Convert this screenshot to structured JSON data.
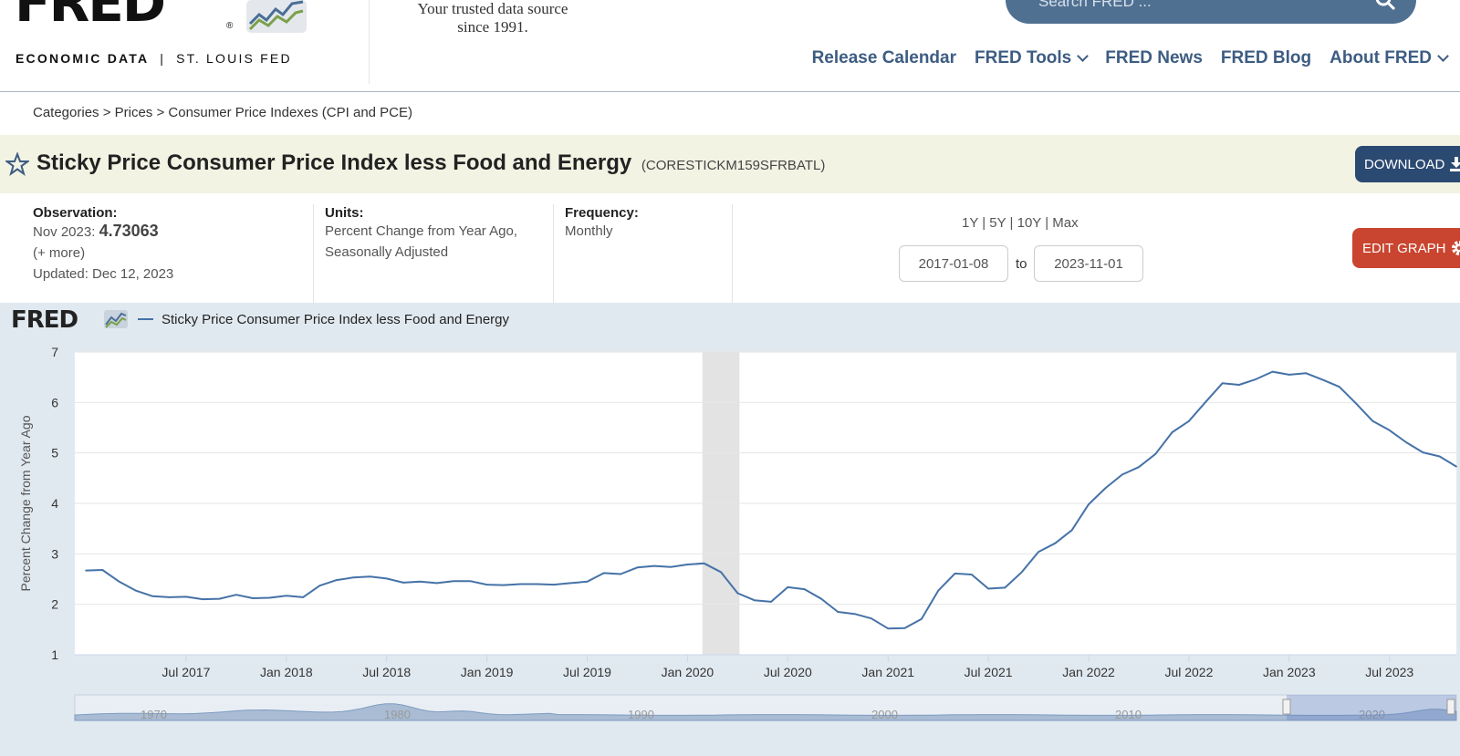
{
  "header": {
    "logo_text": "FRED",
    "logo_reg": "®",
    "logo_sub_bold": "ECONOMIC DATA",
    "logo_sub_sep": "|",
    "logo_sub_rest": "ST. LOUIS FED",
    "tagline_line1": "Your trusted data source",
    "tagline_line2": "since 1991.",
    "search_placeholder": "Search FRED ..."
  },
  "nav": [
    {
      "label": "Release Calendar",
      "has_menu": false
    },
    {
      "label": "FRED Tools",
      "has_menu": true
    },
    {
      "label": "FRED News",
      "has_menu": false
    },
    {
      "label": "FRED Blog",
      "has_menu": false
    },
    {
      "label": "About FRED",
      "has_menu": true
    }
  ],
  "breadcrumb": "Categories > Prices > Consumer Price Indexes (CPI and PCE)",
  "series": {
    "title": "Sticky Price Consumer Price Index less Food and Energy",
    "id": "(CORESTICKM159SFRBATL)"
  },
  "buttons": {
    "download": "DOWNLOAD",
    "edit_graph": "EDIT GRAPH"
  },
  "observation": {
    "label": "Observation:",
    "date": "Nov 2023:",
    "value": "4.73063",
    "more": "(+ more)",
    "updated": "Updated: Dec 12, 2023"
  },
  "units": {
    "label": "Units:",
    "line1": "Percent Change from Year Ago,",
    "line2": "Seasonally Adjusted"
  },
  "frequency": {
    "label": "Frequency:",
    "value": "Monthly"
  },
  "range": {
    "links": "1Y | 5Y | 10Y | Max",
    "start": "2017-01-08",
    "to": "to",
    "end": "2023-11-01"
  },
  "colors": {
    "series_line": "#4572a7",
    "recession_shade": "#e3e3e3",
    "nav_text": "#3d5c82",
    "download_bg": "#2b4a72",
    "edit_bg": "#c9452f",
    "titlebar_bg": "#f2f3e3",
    "graph_bg": "#e1e9f0"
  },
  "chart_data": {
    "type": "line",
    "logo": "FRED",
    "legend": "Sticky Price Consumer Price Index less Food and Energy",
    "ylabel": "Percent Change from Year Ago",
    "ylim": [
      1,
      7
    ],
    "y_ticks": [
      1,
      2,
      3,
      4,
      5,
      6,
      7
    ],
    "x_start": "2017-01",
    "x_end": "2023-11",
    "x_ticks": [
      {
        "label": "Jul 2017",
        "month": 6
      },
      {
        "label": "Jan 2018",
        "month": 12
      },
      {
        "label": "Jul 2018",
        "month": 18
      },
      {
        "label": "Jan 2019",
        "month": 24
      },
      {
        "label": "Jul 2019",
        "month": 30
      },
      {
        "label": "Jan 2020",
        "month": 36
      },
      {
        "label": "Jul 2020",
        "month": 42
      },
      {
        "label": "Jan 2021",
        "month": 48
      },
      {
        "label": "Jul 2021",
        "month": 54
      },
      {
        "label": "Jan 2022",
        "month": 60
      },
      {
        "label": "Jul 2022",
        "month": 66
      },
      {
        "label": "Jan 2023",
        "month": 72
      },
      {
        "label": "Jul 2023",
        "month": 78
      }
    ],
    "recession": {
      "start_month": 37,
      "end_month": 39
    },
    "series": [
      {
        "name": "Sticky Price Consumer Price Index less Food and Energy",
        "start": "2017-01",
        "values": [
          2.67,
          2.68,
          2.45,
          2.27,
          2.16,
          2.14,
          2.15,
          2.1,
          2.11,
          2.19,
          2.12,
          2.13,
          2.17,
          2.14,
          2.37,
          2.48,
          2.53,
          2.55,
          2.51,
          2.43,
          2.45,
          2.42,
          2.46,
          2.46,
          2.39,
          2.38,
          2.4,
          2.4,
          2.39,
          2.42,
          2.45,
          2.62,
          2.6,
          2.73,
          2.76,
          2.74,
          2.79,
          2.81,
          2.64,
          2.22,
          2.08,
          2.05,
          2.34,
          2.3,
          2.11,
          1.85,
          1.81,
          1.72,
          1.52,
          1.53,
          1.71,
          2.27,
          2.61,
          2.59,
          2.31,
          2.33,
          2.64,
          3.04,
          3.21,
          3.47,
          3.98,
          4.3,
          4.57,
          4.72,
          4.98,
          5.41,
          5.63,
          6.01,
          6.38,
          6.35,
          6.46,
          6.61,
          6.55,
          6.58,
          6.45,
          6.31,
          5.98,
          5.63,
          5.45,
          5.21,
          5.01,
          4.93,
          4.73
        ]
      }
    ],
    "navigator_labels": [
      "1970",
      "1980",
      "1990",
      "2000",
      "2010",
      "2020"
    ]
  }
}
